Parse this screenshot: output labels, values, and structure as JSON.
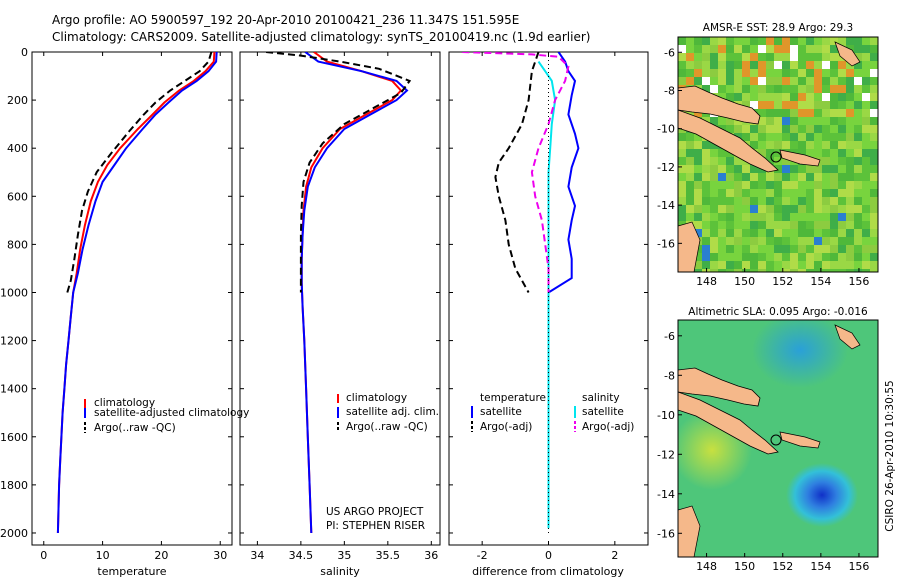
{
  "header": {
    "line1": "Argo profile: AO 5900597_192 20-Apr-2010 20100421_236 11.347S 151.595E",
    "line2": "Climatology: CARS2009. Satellite-adjusted climatology: synTS_20100419.nc (1.9d earlier)"
  },
  "credits": {
    "project": "US ARGO PROJECT",
    "pi": "PI: STEPHEN RISER",
    "csiro": "CSIRO 26-Apr-2010 10:30:55"
  },
  "colors": {
    "climatology": "#ff0000",
    "satellite": "#0000ff",
    "argo": "#000000",
    "sal_satellite": "#00e5ee",
    "sal_argo": "#ee00ee"
  },
  "chart_data": [
    {
      "type": "line",
      "id": "temperature",
      "xlabel": "temperature",
      "xlim": [
        -2,
        32
      ],
      "ylim": [
        2050,
        0
      ],
      "xticks": [
        0,
        10,
        20,
        30
      ],
      "yticks": [
        0,
        200,
        400,
        600,
        800,
        1000,
        1200,
        1400,
        1600,
        1800,
        2000
      ],
      "legend": [
        "climatology",
        "satellite-adjusted climatology",
        "Argo(..raw -QC)"
      ],
      "series": [
        {
          "name": "climatology",
          "color": "#ff0000",
          "dash": "",
          "points": [
            [
              29.0,
              0
            ],
            [
              28.9,
              40
            ],
            [
              27.5,
              80
            ],
            [
              25.5,
              120
            ],
            [
              23.0,
              160
            ],
            [
              20.5,
              210
            ],
            [
              18.5,
              260
            ],
            [
              16.0,
              320
            ],
            [
              13.0,
              400
            ],
            [
              10.8,
              470
            ],
            [
              9.2,
              540
            ],
            [
              8.0,
              620
            ],
            [
              7.0,
              720
            ],
            [
              6.2,
              820
            ],
            [
              5.6,
              920
            ],
            [
              5.0,
              1000
            ],
            [
              4.6,
              1100
            ],
            [
              4.2,
              1200
            ],
            [
              3.8,
              1300
            ],
            [
              3.5,
              1400
            ],
            [
              3.2,
              1500
            ],
            [
              3.0,
              1600
            ],
            [
              2.8,
              1700
            ],
            [
              2.6,
              1800
            ],
            [
              2.5,
              1900
            ],
            [
              2.4,
              2000
            ]
          ]
        },
        {
          "name": "satellite-adjusted climatology",
          "color": "#0000ff",
          "dash": "",
          "points": [
            [
              29.4,
              0
            ],
            [
              29.3,
              40
            ],
            [
              28.0,
              80
            ],
            [
              26.0,
              120
            ],
            [
              23.5,
              160
            ],
            [
              21.2,
              210
            ],
            [
              19.0,
              260
            ],
            [
              16.8,
              320
            ],
            [
              14.0,
              400
            ],
            [
              12.0,
              470
            ],
            [
              10.0,
              540
            ],
            [
              8.8,
              620
            ],
            [
              7.6,
              720
            ],
            [
              6.6,
              820
            ],
            [
              5.8,
              920
            ],
            [
              5.0,
              1000
            ],
            [
              4.6,
              1100
            ],
            [
              4.2,
              1200
            ],
            [
              3.8,
              1300
            ],
            [
              3.5,
              1400
            ],
            [
              3.2,
              1500
            ],
            [
              3.0,
              1600
            ],
            [
              2.8,
              1700
            ],
            [
              2.6,
              1800
            ],
            [
              2.5,
              1900
            ],
            [
              2.4,
              2000
            ]
          ]
        },
        {
          "name": "Argo(..raw -QC)",
          "color": "#000000",
          "dash": "7,4",
          "points": [
            [
              28.5,
              0
            ],
            [
              28.0,
              40
            ],
            [
              26.5,
              80
            ],
            [
              24.0,
              120
            ],
            [
              21.5,
              160
            ],
            [
              19.0,
              210
            ],
            [
              17.0,
              260
            ],
            [
              14.5,
              330
            ],
            [
              11.5,
              420
            ],
            [
              9.0,
              500
            ],
            [
              7.5,
              580
            ],
            [
              6.5,
              660
            ],
            [
              5.8,
              760
            ],
            [
              5.2,
              860
            ],
            [
              4.6,
              950
            ],
            [
              4.0,
              1000
            ]
          ]
        }
      ]
    },
    {
      "type": "line",
      "id": "salinity",
      "xlabel": "salinity",
      "xlim": [
        33.8,
        36.1
      ],
      "ylim": [
        2050,
        0
      ],
      "xticks": [
        34,
        34.5,
        35,
        35.5,
        36
      ],
      "legend": [
        "climatology",
        "satellite adj. clim.",
        "Argo(..raw -QC)"
      ],
      "series": [
        {
          "name": "climatology",
          "color": "#ff0000",
          "dash": "",
          "points": [
            [
              34.65,
              0
            ],
            [
              34.8,
              40
            ],
            [
              35.2,
              80
            ],
            [
              35.55,
              120
            ],
            [
              35.65,
              160
            ],
            [
              35.55,
              200
            ],
            [
              35.25,
              260
            ],
            [
              34.95,
              320
            ],
            [
              34.75,
              400
            ],
            [
              34.62,
              480
            ],
            [
              34.56,
              560
            ],
            [
              34.53,
              660
            ],
            [
              34.52,
              760
            ],
            [
              34.51,
              860
            ],
            [
              34.51,
              960
            ],
            [
              34.52,
              1060
            ],
            [
              34.54,
              1200
            ],
            [
              34.56,
              1400
            ],
            [
              34.58,
              1600
            ],
            [
              34.6,
              1800
            ],
            [
              34.62,
              2000
            ]
          ]
        },
        {
          "name": "satellite adj. clim.",
          "color": "#0000ff",
          "dash": "",
          "points": [
            [
              34.55,
              0
            ],
            [
              34.7,
              40
            ],
            [
              35.2,
              80
            ],
            [
              35.6,
              120
            ],
            [
              35.72,
              160
            ],
            [
              35.6,
              200
            ],
            [
              35.3,
              260
            ],
            [
              35.0,
              320
            ],
            [
              34.8,
              400
            ],
            [
              34.66,
              480
            ],
            [
              34.58,
              560
            ],
            [
              34.54,
              660
            ],
            [
              34.52,
              760
            ],
            [
              34.51,
              860
            ],
            [
              34.51,
              960
            ],
            [
              34.52,
              1060
            ],
            [
              34.54,
              1200
            ],
            [
              34.56,
              1400
            ],
            [
              34.58,
              1600
            ],
            [
              34.6,
              1800
            ],
            [
              34.62,
              2000
            ]
          ]
        },
        {
          "name": "Argo(..raw -QC)",
          "color": "#000000",
          "dash": "7,4",
          "points": [
            [
              34.1,
              0
            ],
            [
              34.5,
              15
            ],
            [
              34.95,
              40
            ],
            [
              35.4,
              70
            ],
            [
              35.75,
              120
            ],
            [
              35.65,
              170
            ],
            [
              35.35,
              230
            ],
            [
              35.0,
              300
            ],
            [
              34.75,
              380
            ],
            [
              34.6,
              460
            ],
            [
              34.53,
              540
            ],
            [
              34.51,
              640
            ],
            [
              34.5,
              760
            ],
            [
              34.5,
              880
            ],
            [
              34.5,
              1000
            ]
          ]
        }
      ]
    },
    {
      "type": "line",
      "id": "difference",
      "xlabel": "difference from climatology",
      "xlim": [
        -3,
        3
      ],
      "ylim": [
        2050,
        0
      ],
      "xticks": [
        -2,
        0,
        2
      ],
      "legend": [
        "temperature",
        "salinity",
        "satellite",
        "satellite",
        "Argo(-adj)",
        "Argo(-adj)"
      ],
      "series": [
        {
          "name": "temperature satellite",
          "color": "#0000ff",
          "dash": "",
          "points": [
            [
              0.3,
              0
            ],
            [
              0.5,
              40
            ],
            [
              0.6,
              80
            ],
            [
              0.8,
              120
            ],
            [
              0.7,
              180
            ],
            [
              0.6,
              260
            ],
            [
              0.8,
              340
            ],
            [
              0.9,
              400
            ],
            [
              0.7,
              480
            ],
            [
              0.6,
              560
            ],
            [
              0.8,
              640
            ],
            [
              0.7,
              700
            ],
            [
              0.6,
              780
            ],
            [
              0.7,
              860
            ],
            [
              0.7,
              940
            ],
            [
              0.0,
              1000
            ]
          ]
        },
        {
          "name": "salinity satellite",
          "color": "#00e5ee",
          "dash": "",
          "points": [
            [
              -0.3,
              40
            ],
            [
              -0.1,
              80
            ],
            [
              0.1,
              120
            ],
            [
              0.2,
              200
            ],
            [
              0.1,
              300
            ],
            [
              0.05,
              400
            ],
            [
              0.0,
              500
            ],
            [
              0.0,
              800
            ],
            [
              0.0,
              1100
            ],
            [
              0.0,
              1500
            ],
            [
              0.0,
              1900
            ],
            [
              0.0,
              1980
            ]
          ]
        },
        {
          "name": "temperature Argo(-adj)",
          "color": "#000000",
          "dash": "7,4",
          "points": [
            [
              -0.3,
              0
            ],
            [
              -0.5,
              80
            ],
            [
              -0.6,
              200
            ],
            [
              -0.8,
              300
            ],
            [
              -1.2,
              400
            ],
            [
              -1.5,
              460
            ],
            [
              -1.6,
              520
            ],
            [
              -1.5,
              600
            ],
            [
              -1.3,
              700
            ],
            [
              -1.2,
              800
            ],
            [
              -1.0,
              900
            ],
            [
              -0.6,
              1000
            ]
          ]
        },
        {
          "name": "salinity Argo(-adj)",
          "color": "#ee00ee",
          "dash": "7,4",
          "points": [
            [
              -2.6,
              0
            ],
            [
              -1.5,
              5
            ],
            [
              -0.5,
              10
            ],
            [
              0.3,
              20
            ],
            [
              0.6,
              60
            ],
            [
              0.5,
              120
            ],
            [
              0.2,
              200
            ],
            [
              0.0,
              300
            ],
            [
              -0.3,
              400
            ],
            [
              -0.5,
              500
            ],
            [
              -0.4,
              600
            ],
            [
              -0.2,
              700
            ],
            [
              -0.1,
              800
            ],
            [
              0.0,
              900
            ],
            [
              0.0,
              1000
            ]
          ]
        },
        {
          "name": "zero reference",
          "color": "#000000",
          "dash": "1,3",
          "points": [
            [
              0,
              0
            ],
            [
              0,
              2000
            ]
          ]
        }
      ]
    }
  ],
  "maps": [
    {
      "id": "sst-map",
      "title": "AMSR-E SST: 28.9  Argo: 29.3",
      "xticks": [
        148,
        150,
        152,
        154,
        156
      ],
      "yticks": [
        -6,
        -8,
        -10,
        -12,
        -14,
        -16
      ]
    },
    {
      "id": "sla-map",
      "title": "Altimetric SLA: 0.095  Argo: -0.016",
      "xticks": [
        148,
        150,
        152,
        154,
        156
      ],
      "yticks": [
        -6,
        -8,
        -10,
        -12,
        -14,
        -16
      ]
    }
  ]
}
